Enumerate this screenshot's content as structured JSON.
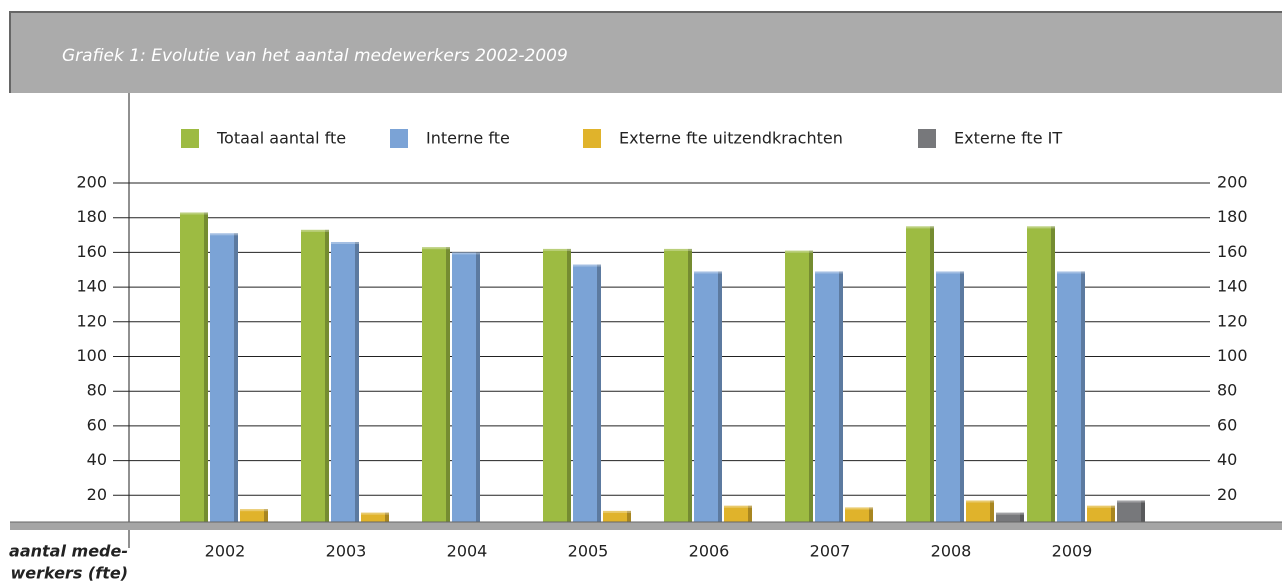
{
  "chart_data": {
    "type": "bar",
    "title": "Grafiek 1: Evolutie van het aantal medewerkers 2002-2009",
    "ylabel": [
      "aantal mede-",
      "werkers (fte)"
    ],
    "categories": [
      "2002",
      "2003",
      "2004",
      "2005",
      "2006",
      "2007",
      "2008",
      "2009"
    ],
    "series": [
      {
        "name": "Totaal aantal fte",
        "color": "#9dbb42",
        "values": [
          183,
          173,
          163,
          162,
          162,
          161,
          175,
          175
        ]
      },
      {
        "name": "Interne fte",
        "color": "#7ba3d6",
        "values": [
          171,
          166,
          160,
          153,
          149,
          149,
          149,
          149
        ]
      },
      {
        "name": "Externe fte uitzendkrachten",
        "color": "#e0b32b",
        "values": [
          12,
          10,
          4,
          11,
          14,
          13,
          17,
          14
        ]
      },
      {
        "name": "Externe fte IT",
        "color": "#77787b",
        "values": [
          null,
          null,
          null,
          null,
          null,
          null,
          10,
          17
        ]
      }
    ],
    "ylim": [
      0,
      200
    ],
    "yticks": [
      20,
      40,
      60,
      80,
      100,
      120,
      140,
      160,
      180,
      200
    ],
    "grid": true,
    "legend": "top"
  }
}
